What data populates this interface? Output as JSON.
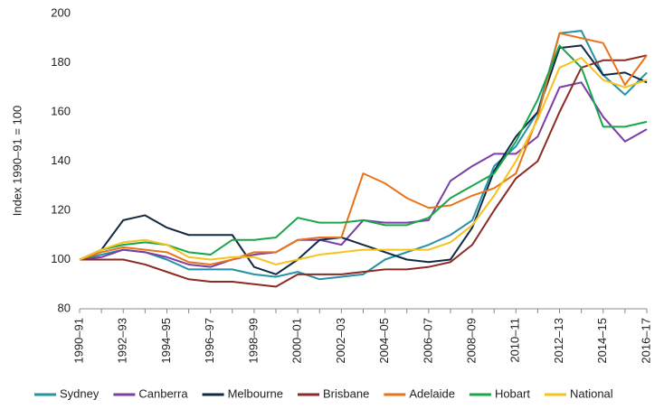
{
  "chart_data": {
    "type": "line",
    "y_label": "Index 1990–91 = 100",
    "categories": [
      "1990–91",
      null,
      "1992–93",
      null,
      "1994–95",
      null,
      "1996–97",
      null,
      "1998–99",
      null,
      "2000–01",
      null,
      "2002–03",
      null,
      "2004–05",
      null,
      "2006–07",
      null,
      "2008–09",
      null,
      "2010–11",
      null,
      "2012–13",
      null,
      "2014–15",
      null,
      "2016–17"
    ],
    "ylim": [
      80,
      200
    ],
    "yticks": [
      80,
      100,
      120,
      140,
      160,
      180,
      200
    ],
    "grid": false,
    "legend": "bottom",
    "series": [
      {
        "name": "Sydney",
        "color": "#2590a8",
        "values": [
          100,
          102,
          104,
          103,
          100,
          96,
          96,
          96,
          94,
          93,
          95,
          92,
          93,
          94,
          100,
          103,
          106,
          110,
          116,
          138,
          146,
          160,
          192,
          193,
          175,
          167,
          176
        ]
      },
      {
        "name": "Canberra",
        "color": "#7a3ea6",
        "values": [
          100,
          101,
          104,
          103,
          101,
          98,
          97,
          100,
          102,
          103,
          108,
          108,
          106,
          116,
          115,
          115,
          116,
          132,
          138,
          143,
          143,
          150,
          170,
          172,
          158,
          148,
          153
        ]
      },
      {
        "name": "Melbourne",
        "color": "#102a43",
        "values": [
          100,
          104,
          116,
          118,
          113,
          110,
          110,
          110,
          97,
          94,
          100,
          108,
          109,
          106,
          103,
          100,
          99,
          100,
          113,
          136,
          150,
          160,
          186,
          187,
          175,
          176,
          172
        ]
      },
      {
        "name": "Brisbane",
        "color": "#8c2b25",
        "values": [
          100,
          100,
          100,
          98,
          95,
          92,
          91,
          91,
          90,
          89,
          94,
          94,
          94,
          95,
          96,
          96,
          97,
          99,
          106,
          120,
          133,
          140,
          160,
          178,
          181,
          181,
          183
        ]
      },
      {
        "name": "Adelaide",
        "color": "#e8731a",
        "values": [
          100,
          103,
          105,
          104,
          103,
          99,
          98,
          100,
          103,
          103,
          108,
          109,
          109,
          135,
          131,
          125,
          121,
          122,
          126,
          129,
          135,
          158,
          192,
          190,
          188,
          171,
          183
        ]
      },
      {
        "name": "Hobart",
        "color": "#18a64c",
        "values": [
          100,
          104,
          106,
          107,
          106,
          103,
          102,
          108,
          108,
          109,
          117,
          115,
          115,
          116,
          114,
          114,
          117,
          125,
          130,
          135,
          148,
          165,
          187,
          178,
          154,
          154,
          156
        ]
      },
      {
        "name": "National",
        "color": "#f6c21c",
        "values": [
          100,
          104,
          107,
          108,
          106,
          101,
          100,
          101,
          101,
          98,
          100,
          102,
          103,
          104,
          104,
          104,
          104,
          107,
          114,
          126,
          140,
          157,
          178,
          182,
          173,
          170,
          173
        ]
      }
    ]
  }
}
